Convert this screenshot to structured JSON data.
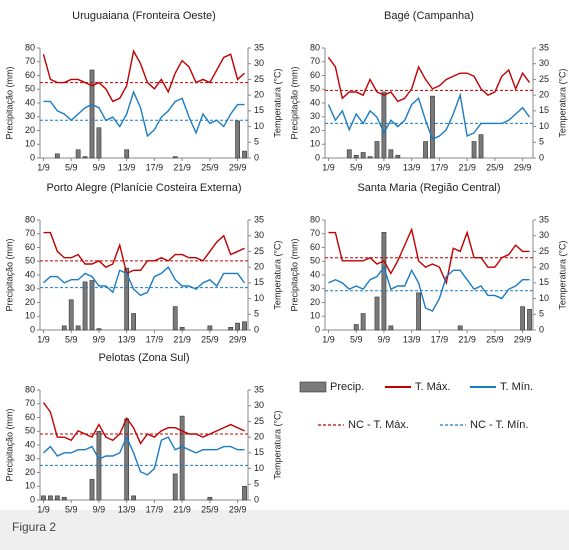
{
  "chart_data": [
    {
      "type": "combo",
      "title": "Uruguaiana (Fronteira Oeste)",
      "y_label": "Precipitação (mm)",
      "y2_label": "Temperatura (°C)",
      "categories": [
        "1/9",
        null,
        null,
        null,
        "5/9",
        null,
        null,
        null,
        "9/9",
        null,
        null,
        null,
        "13/9",
        null,
        null,
        null,
        "17/9",
        null,
        null,
        null,
        "21/9",
        null,
        null,
        null,
        "25/9",
        null,
        null,
        null,
        "29/9",
        null
      ],
      "ylim": [
        0,
        80
      ],
      "yticks": [
        0,
        10,
        20,
        30,
        40,
        50,
        60,
        70,
        80
      ],
      "y2lim": [
        0,
        35
      ],
      "y2ticks": [
        0,
        5,
        10,
        15,
        20,
        25,
        30,
        35
      ],
      "series": [
        {
          "name": "Precip.",
          "type": "bar",
          "color": "#7a7a7a",
          "values": [
            0,
            0,
            3,
            0,
            0,
            6,
            1,
            64,
            22,
            0,
            0,
            0,
            6,
            0,
            0,
            0,
            0,
            0,
            0,
            1,
            0,
            0,
            0,
            0,
            0,
            0,
            0,
            0,
            27,
            5
          ]
        },
        {
          "name": "T. Máx.",
          "type": "line",
          "axis": "y2",
          "color": "#c00000",
          "values": [
            33,
            25,
            24,
            24,
            25,
            25,
            24,
            23,
            24,
            22,
            18,
            19,
            23,
            34,
            30,
            24,
            22,
            25,
            21,
            27,
            31,
            29,
            24,
            25,
            24,
            28,
            32,
            33,
            25,
            27
          ]
        },
        {
          "name": "T. Mín.",
          "type": "line",
          "axis": "y2",
          "color": "#1b7bc4",
          "values": [
            18,
            18,
            15,
            14,
            12,
            14,
            16,
            17,
            16,
            12,
            13,
            10,
            14,
            21,
            16,
            7,
            9,
            13,
            15,
            18,
            19,
            13,
            8,
            14,
            11,
            12,
            10,
            14,
            17,
            17
          ]
        },
        {
          "name": "NC - T. Máx.",
          "type": "hline",
          "axis": "y2",
          "color": "#c00000",
          "value": 24
        },
        {
          "name": "NC - T. Mín.",
          "type": "hline",
          "axis": "y2",
          "color": "#1b7bc4",
          "value": 12
        }
      ]
    },
    {
      "type": "combo",
      "title": "Bagé (Campanha)",
      "y_label": "Precipitação (mm)",
      "y2_label": "Temperatura (°C)",
      "categories": [
        "1/9",
        null,
        null,
        null,
        "5/9",
        null,
        null,
        null,
        "9/9",
        null,
        null,
        null,
        "13/9",
        null,
        null,
        null,
        "17/9",
        null,
        null,
        null,
        "21/9",
        null,
        null,
        null,
        "25/9",
        null,
        null,
        null,
        "29/9",
        null
      ],
      "ylim": [
        0,
        80
      ],
      "yticks": [
        0,
        10,
        20,
        30,
        40,
        50,
        60,
        70,
        80
      ],
      "y2lim": [
        0,
        35
      ],
      "y2ticks": [
        0,
        5,
        10,
        15,
        20,
        25,
        30,
        35
      ],
      "series": [
        {
          "name": "Precip.",
          "type": "bar",
          "color": "#7a7a7a",
          "values": [
            0,
            0,
            0,
            6,
            2,
            4,
            1,
            12,
            48,
            6,
            2,
            0,
            0,
            0,
            12,
            45,
            0,
            0,
            0,
            0,
            0,
            12,
            17,
            0,
            0,
            0,
            0,
            0,
            0,
            0
          ]
        },
        {
          "name": "T. Máx.",
          "type": "line",
          "axis": "y2",
          "color": "#c00000",
          "values": [
            32,
            29,
            19,
            21,
            21,
            20,
            25,
            21,
            20,
            21,
            18,
            19,
            22,
            29,
            25,
            22,
            23,
            25,
            26,
            27,
            27,
            26,
            22,
            20,
            21,
            26,
            28,
            22,
            27,
            24
          ]
        },
        {
          "name": "T. Mín.",
          "type": "line",
          "axis": "y2",
          "color": "#1b7bc4",
          "values": [
            17,
            12,
            15,
            9,
            14,
            11,
            15,
            13,
            8,
            12,
            10,
            12,
            17,
            19,
            12,
            6,
            7,
            9,
            14,
            20,
            7,
            8,
            11,
            11,
            11,
            11,
            12,
            14,
            16,
            13
          ]
        },
        {
          "name": "NC - T. Máx.",
          "type": "hline",
          "axis": "y2",
          "color": "#c00000",
          "value": 21.5
        },
        {
          "name": "NC - T. Mín.",
          "type": "hline",
          "axis": "y2",
          "color": "#1b7bc4",
          "value": 11
        }
      ]
    },
    {
      "type": "combo",
      "title": "Porto Alegre (Planície Costeira Externa)",
      "y_label": "Precipitação (mm)",
      "y2_label": "Temperatura (°C)",
      "categories": [
        "1/9",
        null,
        null,
        null,
        "5/9",
        null,
        null,
        null,
        "9/9",
        null,
        null,
        null,
        "13/9",
        null,
        null,
        null,
        "17/9",
        null,
        null,
        null,
        "21/9",
        null,
        null,
        null,
        "25/9",
        null,
        null,
        null,
        "29/9",
        null
      ],
      "ylim": [
        0,
        80
      ],
      "yticks": [
        0,
        10,
        20,
        30,
        40,
        50,
        60,
        70,
        80
      ],
      "y2lim": [
        0,
        35
      ],
      "y2ticks": [
        0,
        5,
        10,
        15,
        20,
        25,
        30,
        35
      ],
      "series": [
        {
          "name": "Precip.",
          "type": "bar",
          "color": "#7a7a7a",
          "values": [
            0,
            0,
            0,
            3,
            22,
            3,
            35,
            36,
            1,
            0,
            0,
            0,
            45,
            12,
            0,
            0,
            0,
            0,
            0,
            17,
            2,
            0,
            0,
            0,
            3,
            0,
            0,
            2,
            5,
            6
          ]
        },
        {
          "name": "T. Máx.",
          "type": "line",
          "axis": "y2",
          "color": "#c00000",
          "values": [
            31,
            31,
            25,
            23,
            23,
            24,
            21,
            21,
            22,
            20,
            21,
            27,
            18,
            19,
            19,
            22,
            22,
            23,
            22,
            24,
            24,
            23,
            23,
            22,
            25,
            28,
            30,
            24,
            25,
            26
          ]
        },
        {
          "name": "T. Mín.",
          "type": "line",
          "axis": "y2",
          "color": "#1b7bc4",
          "values": [
            15,
            17,
            17,
            15,
            16,
            16,
            18,
            17,
            14,
            14,
            12,
            19,
            18,
            13,
            11,
            12,
            17,
            18,
            20,
            16,
            14,
            14,
            13,
            15,
            16,
            14,
            18,
            18,
            18,
            15
          ]
        },
        {
          "name": "NC - T. Máx.",
          "type": "hline",
          "axis": "y2",
          "color": "#c00000",
          "value": 22
        },
        {
          "name": "NC - T. Mín.",
          "type": "hline",
          "axis": "y2",
          "color": "#1b7bc4",
          "value": 13.5
        }
      ]
    },
    {
      "type": "combo",
      "title": "Santa Maria (Região Central)",
      "y_label": "Precipitação (mm)",
      "y2_label": "Temperatura (°C)",
      "categories": [
        "1/9",
        null,
        null,
        null,
        "5/9",
        null,
        null,
        null,
        "9/9",
        null,
        null,
        null,
        "13/9",
        null,
        null,
        null,
        "17/9",
        null,
        null,
        null,
        "21/9",
        null,
        null,
        null,
        "25/9",
        null,
        null,
        null,
        "29/9",
        null
      ],
      "ylim": [
        0,
        80
      ],
      "yticks": [
        0,
        10,
        20,
        30,
        40,
        50,
        60,
        70,
        80
      ],
      "y2lim": [
        0,
        35
      ],
      "y2ticks": [
        0,
        5,
        10,
        15,
        20,
        25,
        30,
        35
      ],
      "series": [
        {
          "name": "Precip.",
          "type": "bar",
          "color": "#7a7a7a",
          "values": [
            0,
            0,
            0,
            0,
            4,
            12,
            0,
            24,
            71,
            3,
            0,
            0,
            0,
            27,
            0,
            0,
            0,
            0,
            0,
            3,
            0,
            0,
            0,
            0,
            0,
            0,
            0,
            0,
            17,
            15
          ]
        },
        {
          "name": "T. Máx.",
          "type": "line",
          "axis": "y2",
          "color": "#c00000",
          "values": [
            31,
            31,
            22,
            22,
            22,
            22,
            23,
            21,
            22,
            18,
            22,
            27,
            32,
            22,
            20,
            21,
            20,
            15,
            26,
            25,
            31,
            23,
            23,
            20,
            20,
            23,
            24,
            27,
            25,
            25
          ]
        },
        {
          "name": "T. Mín.",
          "type": "line",
          "axis": "y2",
          "color": "#1b7bc4",
          "values": [
            15,
            16,
            15,
            13,
            14,
            13,
            16,
            17,
            20,
            13,
            14,
            14,
            19,
            15,
            7,
            6,
            10,
            17,
            19,
            19,
            16,
            13,
            14,
            11,
            11,
            10,
            13,
            14,
            16,
            16
          ]
        },
        {
          "name": "NC - T. Máx.",
          "type": "hline",
          "axis": "y2",
          "color": "#c00000",
          "value": 23
        },
        {
          "name": "NC - T. Mín.",
          "type": "hline",
          "axis": "y2",
          "color": "#1b7bc4",
          "value": 12.5
        }
      ]
    },
    {
      "type": "combo",
      "title": "Pelotas (Zona Sul)",
      "y_label": "Precipitação (mm)",
      "y2_label": "Temperatura (°C)",
      "categories": [
        "1/9",
        null,
        null,
        null,
        "5/9",
        null,
        null,
        null,
        "9/9",
        null,
        null,
        null,
        "13/9",
        null,
        null,
        null,
        "17/9",
        null,
        null,
        null,
        "21/9",
        null,
        null,
        null,
        "25/9",
        null,
        null,
        null,
        "29/9",
        null
      ],
      "ylim": [
        0,
        80
      ],
      "yticks": [
        0,
        10,
        20,
        30,
        40,
        50,
        60,
        70,
        80
      ],
      "y2lim": [
        0,
        35
      ],
      "y2ticks": [
        0,
        5,
        10,
        15,
        20,
        25,
        30,
        35
      ],
      "series": [
        {
          "name": "Precip.",
          "type": "bar",
          "color": "#7a7a7a",
          "values": [
            3,
            3,
            3,
            2,
            0,
            0,
            0,
            15,
            50,
            0,
            0,
            0,
            59,
            3,
            0,
            0,
            0,
            0,
            0,
            19,
            61,
            0,
            0,
            0,
            2,
            0,
            0,
            0,
            0,
            10
          ]
        },
        {
          "name": "T. Máx.",
          "type": "line",
          "axis": "y2",
          "color": "#c00000",
          "values": [
            31,
            28,
            20,
            20,
            19,
            22,
            21,
            20,
            24,
            20,
            19,
            21,
            26,
            23,
            18,
            21,
            20,
            22,
            23,
            23,
            22,
            21,
            21,
            20,
            21,
            22,
            23,
            24,
            23,
            22
          ]
        },
        {
          "name": "T. Mín.",
          "type": "line",
          "axis": "y2",
          "color": "#1b7bc4",
          "values": [
            15,
            17,
            14,
            15,
            15,
            16,
            16,
            17,
            13,
            14,
            14,
            15,
            20,
            15,
            9,
            8,
            10,
            19,
            20,
            16,
            17,
            16,
            15,
            16,
            16,
            16,
            17,
            17,
            16,
            16
          ]
        },
        {
          "name": "NC - T. Máx.",
          "type": "hline",
          "axis": "y2",
          "color": "#c00000",
          "value": 21
        },
        {
          "name": "NC - T. Mín.",
          "type": "hline",
          "axis": "y2",
          "color": "#1b7bc4",
          "value": 11
        }
      ]
    }
  ],
  "caption": "Figura 2"
}
